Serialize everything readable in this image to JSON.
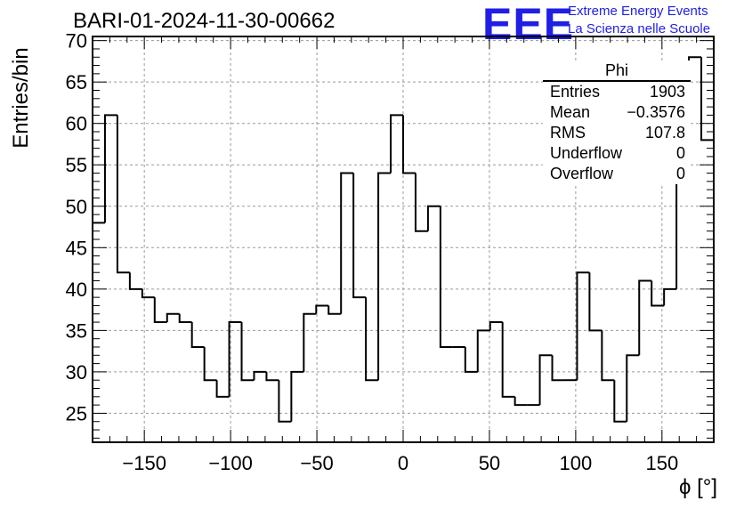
{
  "header": {
    "title": "BARI-01-2024-11-30-00662",
    "logo_text": "EEE",
    "logo_line1": "Extreme Energy Events",
    "logo_line2": "La Scienza nelle Scuole"
  },
  "stats_box": {
    "name": "Phi",
    "rows": [
      {
        "label": "Entries",
        "value": "1903"
      },
      {
        "label": "Mean",
        "value": "−0.3576"
      },
      {
        "label": "RMS",
        "value": "107.8"
      },
      {
        "label": "Underflow",
        "value": "0"
      },
      {
        "label": "Overflow",
        "value": "0"
      }
    ]
  },
  "colors": {
    "logo": "#1f1fe6",
    "line": "#000000",
    "grid": "#9a9a9a"
  },
  "chart_data": {
    "type": "bar",
    "style": "step-histogram",
    "title": "BARI-01-2024-11-30-00662",
    "xlabel": "ϕ [°]",
    "ylabel": "Entries/bin",
    "xlim": [
      -180,
      180
    ],
    "ylim": [
      21.5,
      70.5
    ],
    "grid": true,
    "bin_width": 7.2,
    "bin_edges_start": -180,
    "values": [
      48,
      61,
      42,
      40,
      39,
      36,
      37,
      36,
      33,
      29,
      27,
      36,
      29,
      30,
      29,
      24,
      30,
      37,
      38,
      37,
      54,
      39,
      29,
      54,
      61,
      54,
      47,
      50,
      33,
      33,
      30,
      35,
      36,
      27,
      26,
      26,
      32,
      29,
      29,
      42,
      35,
      29,
      24,
      32,
      41,
      38,
      40,
      63,
      68,
      58
    ],
    "x_ticks": [
      -150,
      -100,
      -50,
      0,
      50,
      100,
      150
    ],
    "x_tick_labels": [
      "−150",
      "−100",
      "−50",
      "0",
      "50",
      "100",
      "150"
    ],
    "y_ticks": [
      25,
      30,
      35,
      40,
      45,
      50,
      55,
      60,
      65,
      70
    ],
    "y_tick_labels": [
      "25",
      "30",
      "35",
      "40",
      "45",
      "50",
      "55",
      "60",
      "65",
      "70"
    ]
  }
}
